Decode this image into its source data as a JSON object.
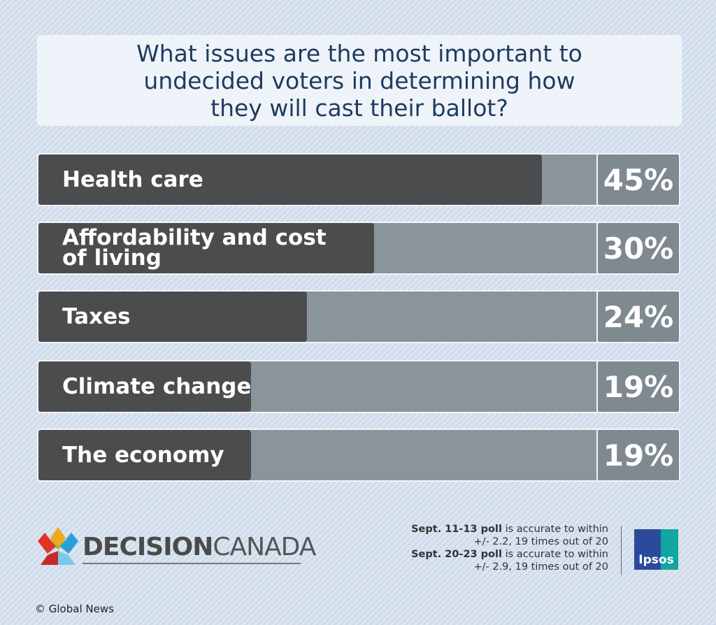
{
  "chart_data": {
    "type": "bar",
    "orientation": "horizontal",
    "title": "What issues are the most important to undecided voters in determining how they will cast their ballot?",
    "categories": [
      "Health care",
      "Affordability and cost of living",
      "Taxes",
      "Climate change",
      "The economy"
    ],
    "values": [
      45,
      30,
      24,
      19,
      19
    ],
    "value_labels": [
      "45%",
      "30%",
      "24%",
      "19%",
      "19%"
    ],
    "color": "#4b4c4e",
    "track_color": "#8a949b"
  },
  "logo": {
    "bold": "DECISION",
    "light": "CANADA"
  },
  "notes": [
    {
      "bold": "Sept. 11-13 poll",
      "text": "is accurate to within",
      "line2": "+/- 2.2, 19 times out of 20"
    },
    {
      "bold": "Sept. 20-23 poll",
      "text": "is accurate to within",
      "line2": "+/- 2.9, 19 times out of 20"
    }
  ],
  "pollster": "Ipsos",
  "credit": "© Global News"
}
